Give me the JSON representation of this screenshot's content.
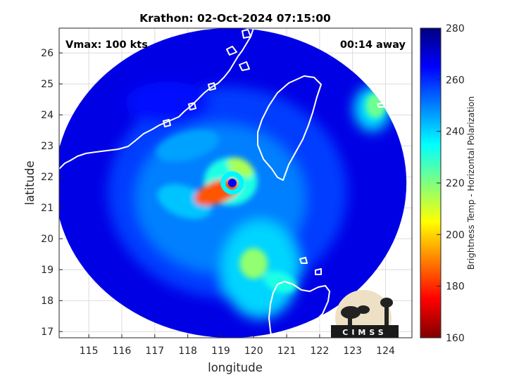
{
  "chart_data": {
    "type": "heatmap",
    "title": "Krathon: 02-Oct-2024 07:15:00",
    "xlabel": "longitude",
    "ylabel": "latitude",
    "xlim": [
      114.1,
      124.8
    ],
    "ylim": [
      16.8,
      26.8
    ],
    "xticks": [
      115,
      116,
      117,
      118,
      119,
      120,
      121,
      122,
      123,
      124
    ],
    "yticks": [
      17,
      18,
      19,
      20,
      21,
      22,
      23,
      24,
      25,
      26
    ],
    "grid": true,
    "annotations": {
      "vmax": "Vmax: 100 kts",
      "time_away": "00:14 away"
    },
    "colorbar": {
      "label": "Brightness Temp - Horizontal Polarization",
      "limits": [
        160,
        280
      ],
      "ticks": [
        160,
        180,
        200,
        220,
        240,
        260,
        280
      ],
      "colormap": "jet",
      "position": "right"
    },
    "storm_center": {
      "lon": 119.35,
      "lat": 21.8
    },
    "swath": {
      "center_lon": 119.3,
      "center_lat": 21.8,
      "radius_deg_lat": 5.0
    },
    "features": [
      {
        "name": "eyewall-arc",
        "lon": 118.9,
        "lat": 21.5,
        "value": 185
      },
      {
        "name": "eyewall-north",
        "lon": 119.6,
        "lat": 22.3,
        "value": 215
      },
      {
        "name": "inner-ring",
        "lon": 119.3,
        "lat": 21.85,
        "value": 232
      },
      {
        "name": "southern-band",
        "lon": 120.0,
        "lat": 19.2,
        "value": 218
      },
      {
        "name": "southern-band-2",
        "lon": 120.8,
        "lat": 18.6,
        "value": 232
      },
      {
        "name": "ne-cells",
        "lon": 123.7,
        "lat": 24.3,
        "value": 222
      },
      {
        "name": "spiral-band-w",
        "lon": 117.9,
        "lat": 21.2,
        "value": 242
      },
      {
        "name": "spiral-band-nw",
        "lon": 118.0,
        "lat": 23.0,
        "value": 246
      }
    ],
    "logo_text": "CIMSS"
  }
}
